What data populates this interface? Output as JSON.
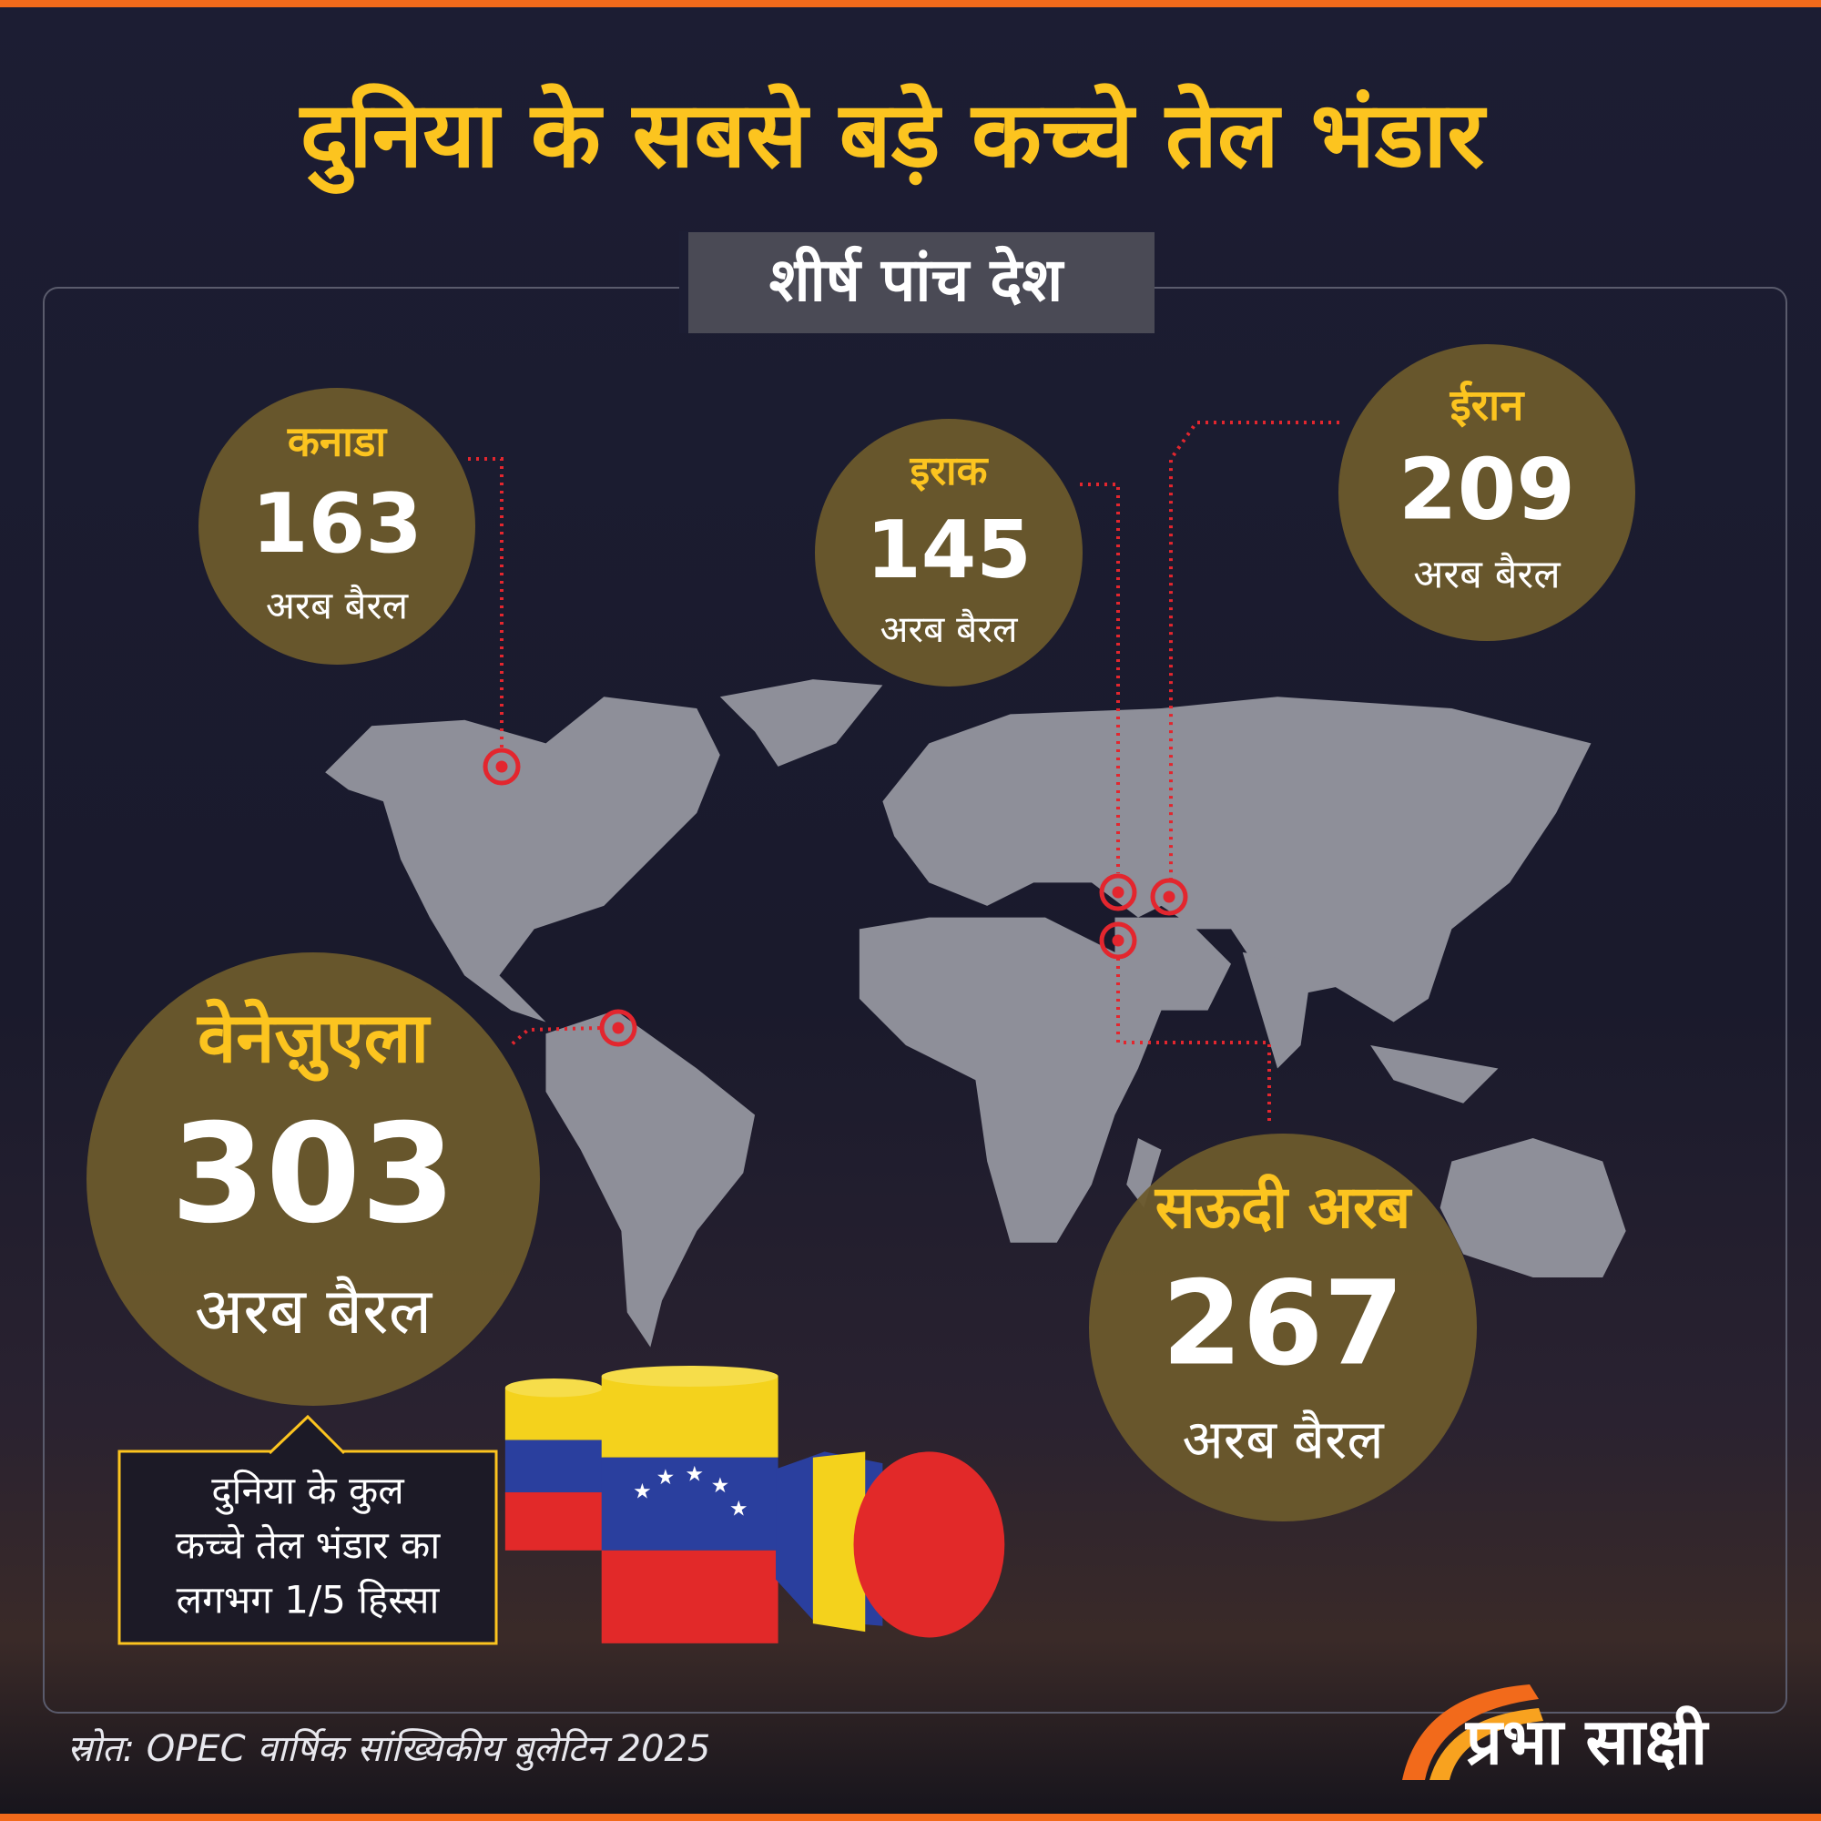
{
  "title": "दुनिया के सबसे बड़े कच्चे तेल भंडार",
  "subtitle": "शीर्ष पांच देश",
  "countries": [
    {
      "name": "कनाडा",
      "value": 163,
      "unit": "अरब बैरल"
    },
    {
      "name": "इराक",
      "value": 145,
      "unit": "अरब बैरल"
    },
    {
      "name": "ईरान",
      "value": 209,
      "unit": "अरब बैरल"
    },
    {
      "name": "वेनेज़ुएला",
      "value": 303,
      "unit": "अरब बैरल"
    },
    {
      "name": "सऊदी अरब",
      "value": 267,
      "unit": "अरब बैरल"
    }
  ],
  "note": [
    "दुनिया के कुल",
    "कच्चे तेल भंडार का",
    "लगभग 1/5 हिस्सा"
  ],
  "source": "स्रोत: OPEC वार्षिक सांख्यिकीय बुलेटिन 2025",
  "logo": "प्रभा साक्षी"
}
